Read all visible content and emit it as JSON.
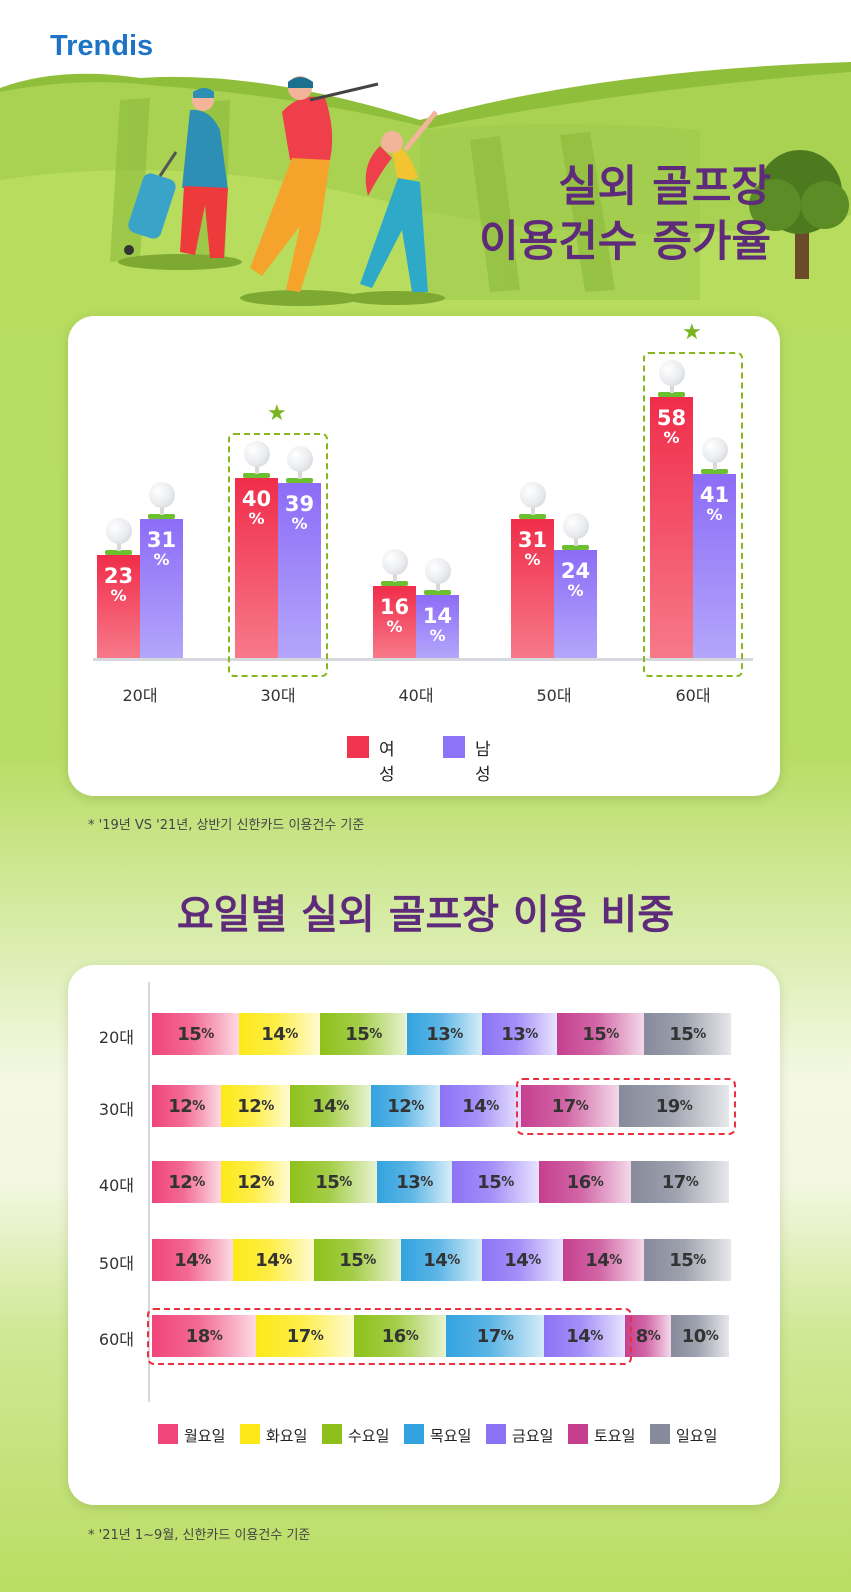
{
  "brand": {
    "logo": "Trendis"
  },
  "chart1": {
    "title_line1": "실외 골프장",
    "title_line2": "이용건수 증가율",
    "footnote": "* '19년 VS '21년, 상반기 신한카드 이용건수 기준",
    "legend": [
      {
        "label": "여성",
        "color": "#f0334e"
      },
      {
        "label": "남성",
        "color": "#8d73f7"
      }
    ]
  },
  "chart2": {
    "title": "요일별 실외 골프장 이용 비중",
    "footnote": "* '21년 1~9월, 신한카드 이용건수 기준",
    "legend": [
      {
        "label": "월요일",
        "color": "#f0457a"
      },
      {
        "label": "화요일",
        "color": "#fde918"
      },
      {
        "label": "수요일",
        "color": "#8dc11a"
      },
      {
        "label": "목요일",
        "color": "#33a3df"
      },
      {
        "label": "금요일",
        "color": "#8c73f6"
      },
      {
        "label": "토요일",
        "color": "#c63f8f"
      },
      {
        "label": "일요일",
        "color": "#868a9a"
      }
    ]
  },
  "chart_data": [
    {
      "type": "bar",
      "title": "실외 골프장 이용건수 증가율",
      "categories": [
        "20대",
        "30대",
        "40대",
        "50대",
        "60대"
      ],
      "series": [
        {
          "name": "여성",
          "values": [
            23,
            40,
            16,
            31,
            58
          ]
        },
        {
          "name": "남성",
          "values": [
            31,
            39,
            14,
            24,
            41
          ]
        }
      ],
      "unit": "%",
      "highlighted": [
        "30대",
        "60대"
      ],
      "ylim": [
        0,
        60
      ]
    },
    {
      "type": "bar",
      "orientation": "horizontal-stacked",
      "title": "요일별 실외 골프장 이용 비중",
      "categories": [
        "20대",
        "30대",
        "40대",
        "50대",
        "60대"
      ],
      "series": [
        {
          "name": "월요일",
          "values": [
            15,
            12,
            12,
            14,
            18
          ]
        },
        {
          "name": "화요일",
          "values": [
            14,
            12,
            12,
            14,
            17
          ]
        },
        {
          "name": "수요일",
          "values": [
            15,
            14,
            15,
            15,
            16
          ]
        },
        {
          "name": "목요일",
          "values": [
            13,
            12,
            13,
            14,
            17
          ]
        },
        {
          "name": "금요일",
          "values": [
            13,
            14,
            15,
            14,
            14
          ]
        },
        {
          "name": "토요일",
          "values": [
            15,
            17,
            16,
            14,
            8
          ]
        },
        {
          "name": "일요일",
          "values": [
            15,
            19,
            17,
            15,
            10
          ]
        }
      ],
      "unit": "%",
      "highlighted": [
        {
          "category": "30대",
          "series": [
            "토요일",
            "일요일"
          ]
        },
        {
          "category": "60대",
          "series": [
            "월요일",
            "화요일",
            "수요일",
            "목요일",
            "금요일"
          ]
        }
      ]
    }
  ]
}
